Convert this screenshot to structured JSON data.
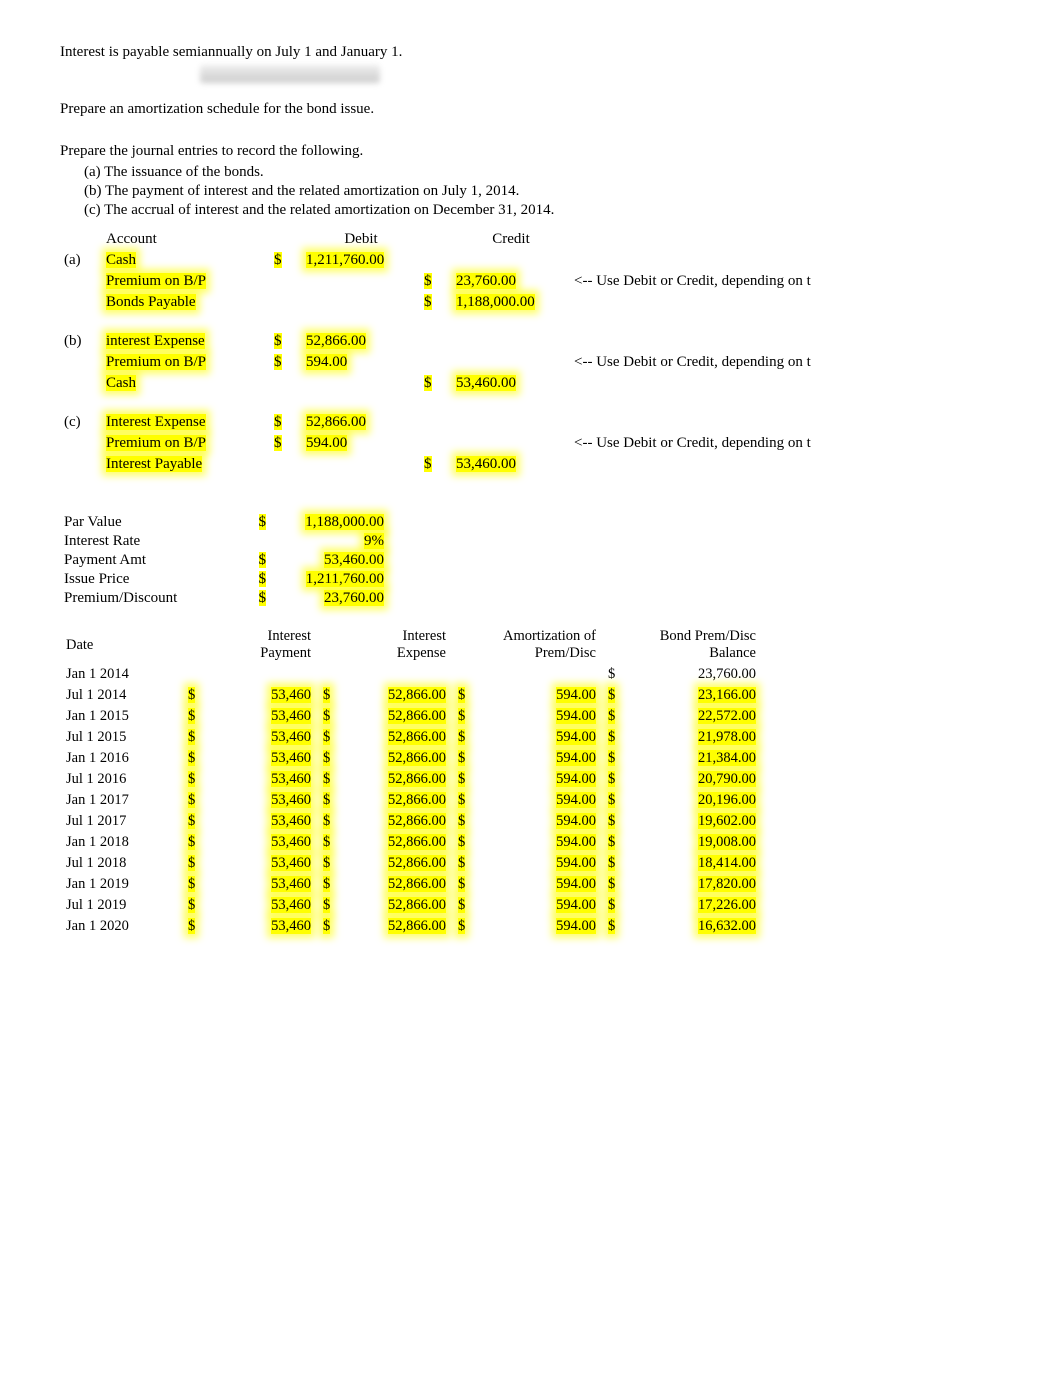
{
  "intro": {
    "line1": "Interest is payable semiannually on July 1 and January 1.",
    "line2": "Prepare an amortization schedule for the bond issue.",
    "line3": "Prepare the journal entries to record the following.",
    "sub_a": "(a) The issuance of the bonds.",
    "sub_b": "(b) The payment of interest and the related amortization on July 1, 2014.",
    "sub_c": "(c) The accrual of interest and the related amortization on December 31, 2014."
  },
  "je_headers": {
    "account": "Account",
    "debit": "Debit",
    "credit": "Credit"
  },
  "je": [
    {
      "tag": "(a)",
      "lines": [
        {
          "acct": "Cash",
          "ds1": "$",
          "debit": "1,211,760.00",
          "ds2": "",
          "credit": "",
          "note": ""
        },
        {
          "acct": "Premium on B/P",
          "ds1": "",
          "debit": "",
          "ds2": "$",
          "credit": "23,760.00",
          "note": "<-- Use Debit or Credit, depending on t"
        },
        {
          "acct": "Bonds Payable",
          "ds1": "",
          "debit": "",
          "ds2": "$",
          "credit": "1,188,000.00",
          "note": ""
        }
      ]
    },
    {
      "tag": "(b)",
      "lines": [
        {
          "acct": "interest Expense",
          "ds1": "$",
          "debit": "52,866.00",
          "ds2": "",
          "credit": "",
          "note": ""
        },
        {
          "acct": "Premium on B/P",
          "ds1": "$",
          "debit": "594.00",
          "ds2": "",
          "credit": "",
          "note": "<-- Use Debit or Credit, depending on t"
        },
        {
          "acct": "Cash",
          "ds1": "",
          "debit": "",
          "ds2": "$",
          "credit": "53,460.00",
          "note": ""
        }
      ]
    },
    {
      "tag": "(c)",
      "lines": [
        {
          "acct": "Interest Expense",
          "ds1": "$",
          "debit": "52,866.00",
          "ds2": "",
          "credit": "",
          "note": ""
        },
        {
          "acct": "Premium on B/P",
          "ds1": "$",
          "debit": "594.00",
          "ds2": "",
          "credit": "",
          "note": "<-- Use Debit or Credit, depending on t"
        },
        {
          "acct": "Interest Payable",
          "ds1": "",
          "debit": "",
          "ds2": "$",
          "credit": "53,460.00",
          "note": ""
        }
      ]
    }
  ],
  "params": [
    {
      "label": "Par Value",
      "ds": "$",
      "value": "1,188,000.00",
      "is_pct": false
    },
    {
      "label": "Interest Rate",
      "ds": "",
      "value": "9%",
      "is_pct": true
    },
    {
      "label": "Payment Amt",
      "ds": "$",
      "value": "53,460.00",
      "is_pct": false
    },
    {
      "label": "Issue Price",
      "ds": "$",
      "value": "1,211,760.00",
      "is_pct": false
    },
    {
      "label": "Premium/Discount",
      "ds": "$",
      "value": "23,760.00",
      "is_pct": false
    }
  ],
  "sched_headers": {
    "date": "Date",
    "ip": "Interest Payment",
    "ie": "Interest Expense",
    "amort": "Amortization of Prem/Disc",
    "bal": "Bond Prem/Disc Balance"
  },
  "schedule": [
    {
      "date": "Jan 1 2014",
      "ds1": "",
      "ip": "",
      "ds2": "",
      "ie": "",
      "ds3": "",
      "amort": "",
      "ds4": "$",
      "bal": "23,760.00"
    },
    {
      "date": "Jul 1 2014",
      "ds1": "$",
      "ip": "53,460",
      "ds2": "$",
      "ie": "52,866.00",
      "ds3": "$",
      "amort": "594.00",
      "ds4": "$",
      "bal": "23,166.00"
    },
    {
      "date": "Jan 1 2015",
      "ds1": "$",
      "ip": "53,460",
      "ds2": "$",
      "ie": "52,866.00",
      "ds3": "$",
      "amort": "594.00",
      "ds4": "$",
      "bal": "22,572.00"
    },
    {
      "date": "Jul 1 2015",
      "ds1": "$",
      "ip": "53,460",
      "ds2": "$",
      "ie": "52,866.00",
      "ds3": "$",
      "amort": "594.00",
      "ds4": "$",
      "bal": "21,978.00"
    },
    {
      "date": "Jan 1 2016",
      "ds1": "$",
      "ip": "53,460",
      "ds2": "$",
      "ie": "52,866.00",
      "ds3": "$",
      "amort": "594.00",
      "ds4": "$",
      "bal": "21,384.00"
    },
    {
      "date": "Jul 1 2016",
      "ds1": "$",
      "ip": "53,460",
      "ds2": "$",
      "ie": "52,866.00",
      "ds3": "$",
      "amort": "594.00",
      "ds4": "$",
      "bal": "20,790.00"
    },
    {
      "date": "Jan 1 2017",
      "ds1": "$",
      "ip": "53,460",
      "ds2": "$",
      "ie": "52,866.00",
      "ds3": "$",
      "amort": "594.00",
      "ds4": "$",
      "bal": "20,196.00"
    },
    {
      "date": "Jul 1 2017",
      "ds1": "$",
      "ip": "53,460",
      "ds2": "$",
      "ie": "52,866.00",
      "ds3": "$",
      "amort": "594.00",
      "ds4": "$",
      "bal": "19,602.00"
    },
    {
      "date": "Jan 1 2018",
      "ds1": "$",
      "ip": "53,460",
      "ds2": "$",
      "ie": "52,866.00",
      "ds3": "$",
      "amort": "594.00",
      "ds4": "$",
      "bal": "19,008.00"
    },
    {
      "date": "Jul 1 2018",
      "ds1": "$",
      "ip": "53,460",
      "ds2": "$",
      "ie": "52,866.00",
      "ds3": "$",
      "amort": "594.00",
      "ds4": "$",
      "bal": "18,414.00"
    },
    {
      "date": "Jan 1 2019",
      "ds1": "$",
      "ip": "53,460",
      "ds2": "$",
      "ie": "52,866.00",
      "ds3": "$",
      "amort": "594.00",
      "ds4": "$",
      "bal": "17,820.00"
    },
    {
      "date": "Jul 1 2019",
      "ds1": "$",
      "ip": "53,460",
      "ds2": "$",
      "ie": "52,866.00",
      "ds3": "$",
      "amort": "594.00",
      "ds4": "$",
      "bal": "17,226.00"
    },
    {
      "date": "Jan 1 2020",
      "ds1": "$",
      "ip": "53,460",
      "ds2": "$",
      "ie": "52,866.00",
      "ds3": "$",
      "amort": "594.00",
      "ds4": "$",
      "bal": "16,632.00"
    }
  ],
  "colors": {
    "highlight": "#ffff00",
    "text": "#000000",
    "background": "#ffffff"
  }
}
